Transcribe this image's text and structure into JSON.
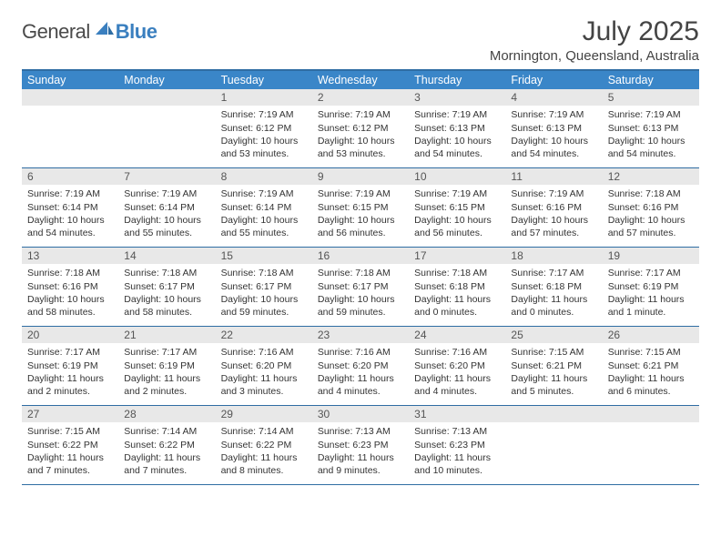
{
  "logo": {
    "general": "General",
    "blue": "Blue"
  },
  "title": "July 2025",
  "location": "Mornington, Queensland, Australia",
  "colors": {
    "headerBar": "#3a86c8",
    "headerBorder": "#2f6da3",
    "numStrip": "#e8e8e8",
    "text": "#333333",
    "logoBlue": "#3a7fbf"
  },
  "dayNames": [
    "Sunday",
    "Monday",
    "Tuesday",
    "Wednesday",
    "Thursday",
    "Friday",
    "Saturday"
  ],
  "weeks": [
    [
      {
        "n": "",
        "sr": "",
        "ss": "",
        "dl": ""
      },
      {
        "n": "",
        "sr": "",
        "ss": "",
        "dl": ""
      },
      {
        "n": "1",
        "sr": "Sunrise: 7:19 AM",
        "ss": "Sunset: 6:12 PM",
        "dl": "Daylight: 10 hours and 53 minutes."
      },
      {
        "n": "2",
        "sr": "Sunrise: 7:19 AM",
        "ss": "Sunset: 6:12 PM",
        "dl": "Daylight: 10 hours and 53 minutes."
      },
      {
        "n": "3",
        "sr": "Sunrise: 7:19 AM",
        "ss": "Sunset: 6:13 PM",
        "dl": "Daylight: 10 hours and 54 minutes."
      },
      {
        "n": "4",
        "sr": "Sunrise: 7:19 AM",
        "ss": "Sunset: 6:13 PM",
        "dl": "Daylight: 10 hours and 54 minutes."
      },
      {
        "n": "5",
        "sr": "Sunrise: 7:19 AM",
        "ss": "Sunset: 6:13 PM",
        "dl": "Daylight: 10 hours and 54 minutes."
      }
    ],
    [
      {
        "n": "6",
        "sr": "Sunrise: 7:19 AM",
        "ss": "Sunset: 6:14 PM",
        "dl": "Daylight: 10 hours and 54 minutes."
      },
      {
        "n": "7",
        "sr": "Sunrise: 7:19 AM",
        "ss": "Sunset: 6:14 PM",
        "dl": "Daylight: 10 hours and 55 minutes."
      },
      {
        "n": "8",
        "sr": "Sunrise: 7:19 AM",
        "ss": "Sunset: 6:14 PM",
        "dl": "Daylight: 10 hours and 55 minutes."
      },
      {
        "n": "9",
        "sr": "Sunrise: 7:19 AM",
        "ss": "Sunset: 6:15 PM",
        "dl": "Daylight: 10 hours and 56 minutes."
      },
      {
        "n": "10",
        "sr": "Sunrise: 7:19 AM",
        "ss": "Sunset: 6:15 PM",
        "dl": "Daylight: 10 hours and 56 minutes."
      },
      {
        "n": "11",
        "sr": "Sunrise: 7:19 AM",
        "ss": "Sunset: 6:16 PM",
        "dl": "Daylight: 10 hours and 57 minutes."
      },
      {
        "n": "12",
        "sr": "Sunrise: 7:18 AM",
        "ss": "Sunset: 6:16 PM",
        "dl": "Daylight: 10 hours and 57 minutes."
      }
    ],
    [
      {
        "n": "13",
        "sr": "Sunrise: 7:18 AM",
        "ss": "Sunset: 6:16 PM",
        "dl": "Daylight: 10 hours and 58 minutes."
      },
      {
        "n": "14",
        "sr": "Sunrise: 7:18 AM",
        "ss": "Sunset: 6:17 PM",
        "dl": "Daylight: 10 hours and 58 minutes."
      },
      {
        "n": "15",
        "sr": "Sunrise: 7:18 AM",
        "ss": "Sunset: 6:17 PM",
        "dl": "Daylight: 10 hours and 59 minutes."
      },
      {
        "n": "16",
        "sr": "Sunrise: 7:18 AM",
        "ss": "Sunset: 6:17 PM",
        "dl": "Daylight: 10 hours and 59 minutes."
      },
      {
        "n": "17",
        "sr": "Sunrise: 7:18 AM",
        "ss": "Sunset: 6:18 PM",
        "dl": "Daylight: 11 hours and 0 minutes."
      },
      {
        "n": "18",
        "sr": "Sunrise: 7:17 AM",
        "ss": "Sunset: 6:18 PM",
        "dl": "Daylight: 11 hours and 0 minutes."
      },
      {
        "n": "19",
        "sr": "Sunrise: 7:17 AM",
        "ss": "Sunset: 6:19 PM",
        "dl": "Daylight: 11 hours and 1 minute."
      }
    ],
    [
      {
        "n": "20",
        "sr": "Sunrise: 7:17 AM",
        "ss": "Sunset: 6:19 PM",
        "dl": "Daylight: 11 hours and 2 minutes."
      },
      {
        "n": "21",
        "sr": "Sunrise: 7:17 AM",
        "ss": "Sunset: 6:19 PM",
        "dl": "Daylight: 11 hours and 2 minutes."
      },
      {
        "n": "22",
        "sr": "Sunrise: 7:16 AM",
        "ss": "Sunset: 6:20 PM",
        "dl": "Daylight: 11 hours and 3 minutes."
      },
      {
        "n": "23",
        "sr": "Sunrise: 7:16 AM",
        "ss": "Sunset: 6:20 PM",
        "dl": "Daylight: 11 hours and 4 minutes."
      },
      {
        "n": "24",
        "sr": "Sunrise: 7:16 AM",
        "ss": "Sunset: 6:20 PM",
        "dl": "Daylight: 11 hours and 4 minutes."
      },
      {
        "n": "25",
        "sr": "Sunrise: 7:15 AM",
        "ss": "Sunset: 6:21 PM",
        "dl": "Daylight: 11 hours and 5 minutes."
      },
      {
        "n": "26",
        "sr": "Sunrise: 7:15 AM",
        "ss": "Sunset: 6:21 PM",
        "dl": "Daylight: 11 hours and 6 minutes."
      }
    ],
    [
      {
        "n": "27",
        "sr": "Sunrise: 7:15 AM",
        "ss": "Sunset: 6:22 PM",
        "dl": "Daylight: 11 hours and 7 minutes."
      },
      {
        "n": "28",
        "sr": "Sunrise: 7:14 AM",
        "ss": "Sunset: 6:22 PM",
        "dl": "Daylight: 11 hours and 7 minutes."
      },
      {
        "n": "29",
        "sr": "Sunrise: 7:14 AM",
        "ss": "Sunset: 6:22 PM",
        "dl": "Daylight: 11 hours and 8 minutes."
      },
      {
        "n": "30",
        "sr": "Sunrise: 7:13 AM",
        "ss": "Sunset: 6:23 PM",
        "dl": "Daylight: 11 hours and 9 minutes."
      },
      {
        "n": "31",
        "sr": "Sunrise: 7:13 AM",
        "ss": "Sunset: 6:23 PM",
        "dl": "Daylight: 11 hours and 10 minutes."
      },
      {
        "n": "",
        "sr": "",
        "ss": "",
        "dl": ""
      },
      {
        "n": "",
        "sr": "",
        "ss": "",
        "dl": ""
      }
    ]
  ]
}
